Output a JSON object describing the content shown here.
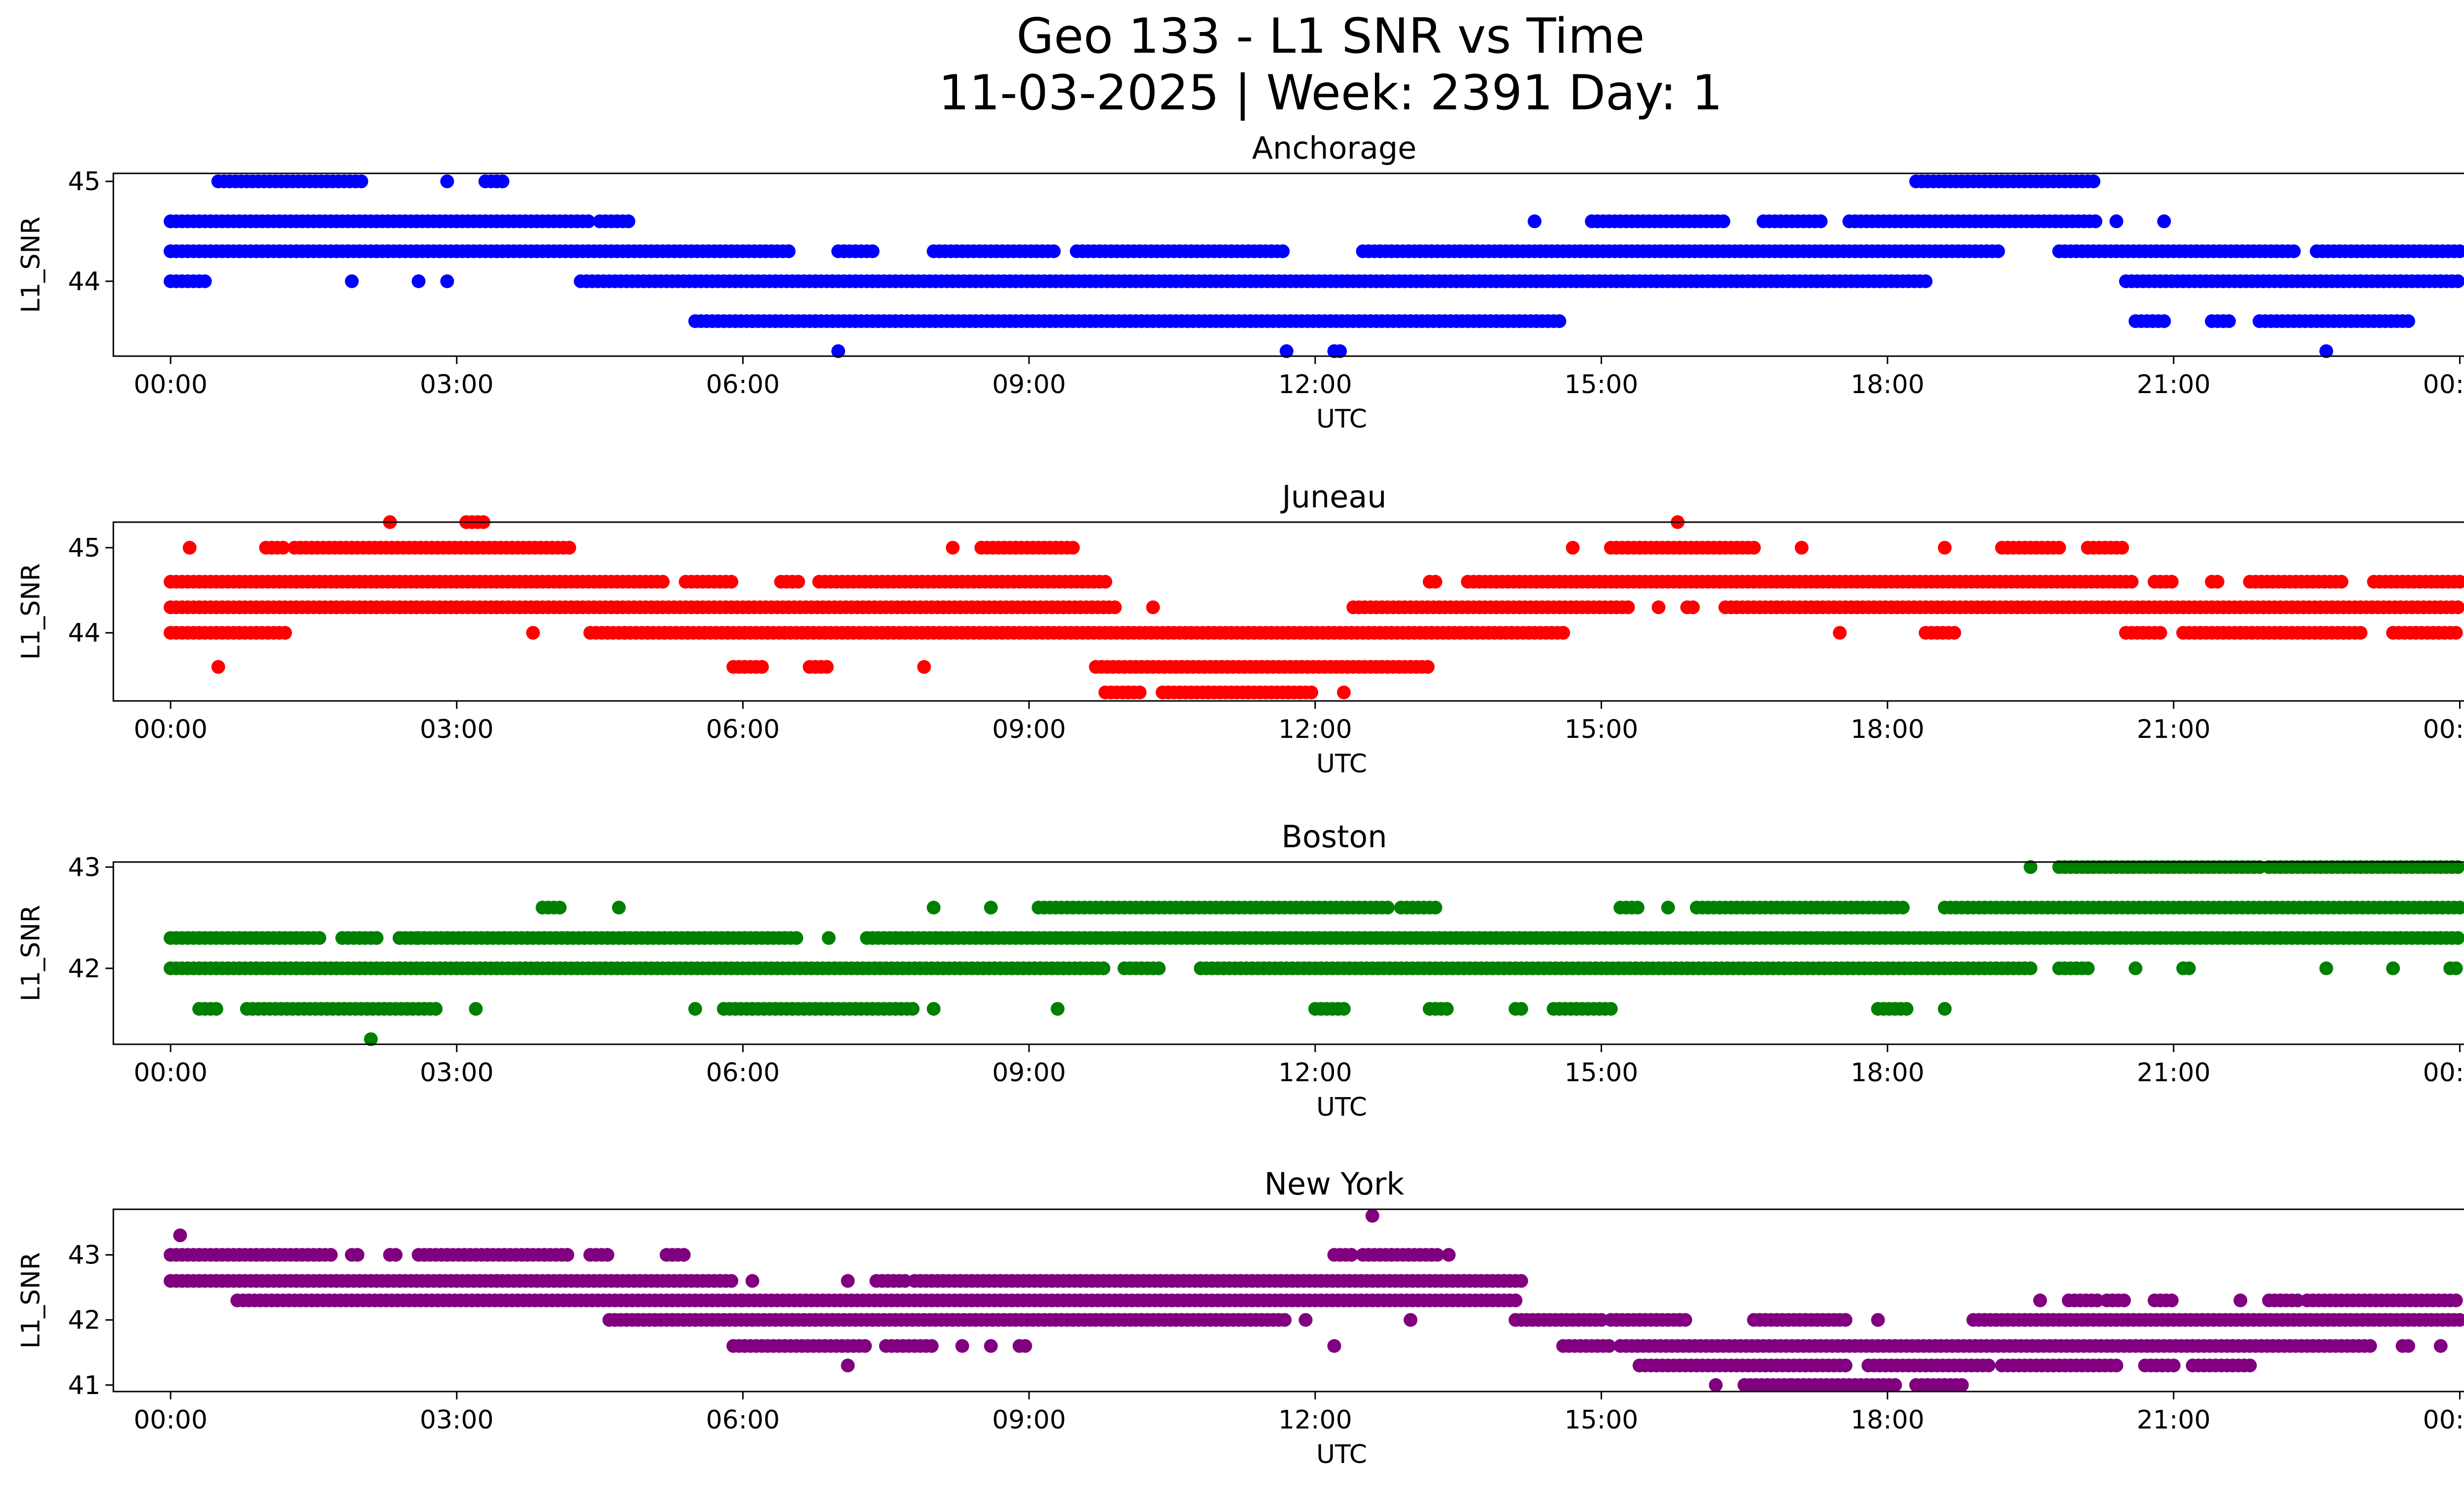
{
  "chart_data": {
    "type": "scatter",
    "suptitle_line1": "Geo 133 - L1 SNR vs Time",
    "suptitle_line2": "11-03-2025 | Week: 2391 Day: 1",
    "xlabel": "UTC",
    "xticks": [
      "00:00",
      "03:00",
      "06:00",
      "09:00",
      "12:00",
      "15:00",
      "18:00",
      "21:00",
      "00:00"
    ],
    "xlim_hours": [
      -0.6,
      25.0
    ],
    "panels": [
      {
        "title": "Anchorage",
        "ylabel": "L1_SNR",
        "color": "#0000ff",
        "ylim": [
          43.25,
          45.08
        ],
        "yticks": [
          44,
          45
        ],
        "bands": [
          {
            "y": 45.0,
            "segments": [
              [
                0.5,
                2.0
              ],
              [
                2.9,
                2.9
              ],
              [
                3.3,
                3.5
              ],
              [
                18.3,
                20.2
              ]
            ]
          },
          {
            "y": 44.6,
            "segments": [
              [
                0.0,
                4.4
              ],
              [
                4.5,
                4.8
              ],
              [
                14.3,
                14.3
              ],
              [
                14.9,
                16.3
              ],
              [
                16.7,
                17.3
              ],
              [
                17.6,
                20.2
              ],
              [
                20.4,
                20.4
              ],
              [
                20.9,
                20.9
              ]
            ]
          },
          {
            "y": 44.3,
            "segments": [
              [
                0.0,
                6.5
              ],
              [
                7.0,
                7.4
              ],
              [
                8.0,
                9.3
              ],
              [
                9.5,
                11.7
              ],
              [
                12.5,
                19.2
              ],
              [
                19.8,
                22.3
              ],
              [
                22.5,
                24.0
              ]
            ]
          },
          {
            "y": 44.0,
            "segments": [
              [
                0.0,
                0.4
              ],
              [
                1.9,
                1.9
              ],
              [
                2.6,
                2.6
              ],
              [
                2.9,
                2.9
              ],
              [
                4.3,
                18.4
              ],
              [
                20.5,
                24.0
              ]
            ]
          },
          {
            "y": 43.6,
            "segments": [
              [
                5.5,
                14.6
              ],
              [
                20.6,
                20.9
              ],
              [
                21.4,
                21.6
              ],
              [
                21.9,
                23.5
              ]
            ]
          },
          {
            "y": 43.3,
            "segments": [
              [
                7.0,
                7.0
              ],
              [
                11.7,
                11.7
              ],
              [
                12.2,
                12.3
              ],
              [
                22.6,
                22.6
              ]
            ]
          }
        ]
      },
      {
        "title": "Juneau",
        "ylabel": "L1_SNR",
        "color": "#ff0000",
        "ylim": [
          43.2,
          45.3
        ],
        "yticks": [
          44,
          45
        ],
        "bands": [
          {
            "y": 45.3,
            "segments": [
              [
                2.3,
                2.3
              ],
              [
                3.1,
                3.3
              ],
              [
                15.8,
                15.8
              ]
            ]
          },
          {
            "y": 45.0,
            "segments": [
              [
                0.2,
                0.2
              ],
              [
                1.0,
                1.2
              ],
              [
                1.3,
                4.2
              ],
              [
                8.2,
                8.2
              ],
              [
                8.5,
                9.5
              ],
              [
                14.7,
                14.7
              ],
              [
                15.1,
                16.6
              ],
              [
                17.1,
                17.1
              ],
              [
                18.6,
                18.6
              ],
              [
                19.2,
                19.8
              ],
              [
                20.1,
                20.5
              ]
            ]
          },
          {
            "y": 44.6,
            "segments": [
              [
                0.0,
                5.2
              ],
              [
                5.4,
                5.9
              ],
              [
                6.4,
                6.6
              ],
              [
                6.8,
                9.8
              ],
              [
                13.2,
                13.3
              ],
              [
                13.6,
                20.6
              ],
              [
                20.8,
                21.0
              ],
              [
                21.4,
                21.5
              ],
              [
                21.8,
                22.8
              ],
              [
                23.1,
                24.0
              ]
            ]
          },
          {
            "y": 44.3,
            "segments": [
              [
                0.0,
                9.9
              ],
              [
                10.3,
                10.3
              ],
              [
                12.4,
                15.3
              ],
              [
                15.6,
                15.6
              ],
              [
                15.9,
                16.0
              ],
              [
                16.3,
                24.0
              ]
            ]
          },
          {
            "y": 44.0,
            "segments": [
              [
                0.0,
                1.2
              ],
              [
                1.2,
                1.2
              ],
              [
                3.8,
                3.8
              ],
              [
                4.4,
                9.5
              ],
              [
                9.5,
                14.6
              ],
              [
                14.6,
                14.6
              ],
              [
                17.5,
                17.5
              ],
              [
                18.4,
                18.7
              ],
              [
                20.5,
                20.9
              ],
              [
                21.1,
                23.0
              ],
              [
                23.3,
                24.0
              ]
            ]
          },
          {
            "y": 43.6,
            "segments": [
              [
                0.5,
                0.5
              ],
              [
                5.9,
                6.2
              ],
              [
                6.7,
                6.9
              ],
              [
                7.9,
                7.9
              ],
              [
                9.7,
                13.2
              ]
            ]
          },
          {
            "y": 43.3,
            "segments": [
              [
                9.8,
                10.2
              ],
              [
                10.4,
                12.0
              ],
              [
                12.3,
                12.3
              ]
            ]
          }
        ]
      },
      {
        "title": "Boston",
        "ylabel": "L1_SNR",
        "color": "#008000",
        "ylim": [
          41.25,
          43.05
        ],
        "yticks": [
          42,
          43
        ],
        "bands": [
          {
            "y": 43.0,
            "segments": [
              [
                19.5,
                19.5
              ],
              [
                19.8,
                21.9
              ],
              [
                22.0,
                24.0
              ]
            ]
          },
          {
            "y": 42.6,
            "segments": [
              [
                3.9,
                4.1
              ],
              [
                4.7,
                4.7
              ],
              [
                8.0,
                8.0
              ],
              [
                8.6,
                8.6
              ],
              [
                9.1,
                12.8
              ],
              [
                12.9,
                13.3
              ],
              [
                15.2,
                15.4
              ],
              [
                15.7,
                15.7
              ],
              [
                16.0,
                18.2
              ],
              [
                18.6,
                24.0
              ]
            ]
          },
          {
            "y": 42.3,
            "segments": [
              [
                0.0,
                1.6
              ],
              [
                1.8,
                2.2
              ],
              [
                2.4,
                2.6
              ],
              [
                2.6,
                6.6
              ],
              [
                6.9,
                6.9
              ],
              [
                7.3,
                24.0
              ]
            ]
          },
          {
            "y": 42.0,
            "segments": [
              [
                0.0,
                9.8
              ],
              [
                10.0,
                10.4
              ],
              [
                10.8,
                19.5
              ],
              [
                19.8,
                20.1
              ],
              [
                20.6,
                20.6
              ],
              [
                21.1,
                21.2
              ],
              [
                22.6,
                22.6
              ],
              [
                23.3,
                23.3
              ],
              [
                23.9,
                24.0
              ]
            ]
          },
          {
            "y": 41.6,
            "segments": [
              [
                0.3,
                0.5
              ],
              [
                0.8,
                2.8
              ],
              [
                3.2,
                3.2
              ],
              [
                5.5,
                5.5
              ],
              [
                5.8,
                7.8
              ],
              [
                8.0,
                8.0
              ],
              [
                9.3,
                9.3
              ],
              [
                12.0,
                12.3
              ],
              [
                13.2,
                13.4
              ],
              [
                14.1,
                14.2
              ],
              [
                14.5,
                15.1
              ],
              [
                17.9,
                18.2
              ],
              [
                18.6,
                18.6
              ]
            ]
          },
          {
            "y": 41.3,
            "segments": [
              [
                2.1,
                2.1
              ]
            ]
          }
        ]
      },
      {
        "title": "New York",
        "ylabel": "L1_SNR",
        "color": "#800080",
        "ylim": [
          40.9,
          43.7
        ],
        "yticks": [
          41,
          42,
          43
        ],
        "bands": [
          {
            "y": 43.6,
            "segments": [
              [
                12.6,
                12.6
              ]
            ]
          },
          {
            "y": 43.3,
            "segments": [
              [
                0.1,
                0.1
              ]
            ]
          },
          {
            "y": 43.0,
            "segments": [
              [
                0.0,
                1.7
              ],
              [
                1.9,
                2.0
              ],
              [
                2.3,
                2.4
              ],
              [
                2.6,
                4.2
              ],
              [
                4.4,
                4.6
              ],
              [
                5.2,
                5.4
              ],
              [
                12.2,
                12.4
              ],
              [
                12.5,
                13.3
              ],
              [
                13.4,
                13.4
              ]
            ]
          },
          {
            "y": 42.6,
            "segments": [
              [
                0.0,
                5.9
              ],
              [
                6.1,
                6.1
              ],
              [
                7.1,
                7.1
              ],
              [
                7.4,
                7.7
              ],
              [
                7.8,
                14.2
              ]
            ]
          },
          {
            "y": 42.3,
            "segments": [
              [
                0.7,
                6.0
              ],
              [
                6.0,
                14.1
              ],
              [
                19.6,
                19.6
              ],
              [
                19.9,
                20.2
              ],
              [
                20.3,
                20.5
              ],
              [
                20.8,
                21.0
              ],
              [
                21.7,
                21.7
              ],
              [
                22.0,
                22.3
              ],
              [
                22.4,
                24.0
              ]
            ]
          },
          {
            "y": 42.0,
            "segments": [
              [
                4.6,
                11.7
              ],
              [
                11.9,
                11.9
              ],
              [
                13.0,
                13.0
              ],
              [
                14.1,
                15.0
              ],
              [
                15.1,
                15.9
              ],
              [
                16.6,
                17.6
              ],
              [
                17.9,
                17.9
              ],
              [
                18.9,
                24.0
              ]
            ]
          },
          {
            "y": 41.6,
            "segments": [
              [
                5.9,
                7.3
              ],
              [
                7.5,
                8.0
              ],
              [
                8.3,
                8.3
              ],
              [
                8.6,
                8.6
              ],
              [
                8.9,
                9.0
              ],
              [
                12.2,
                12.2
              ],
              [
                14.6,
                15.1
              ],
              [
                15.2,
                23.1
              ],
              [
                23.4,
                23.5
              ],
              [
                23.8,
                23.8
              ]
            ]
          },
          {
            "y": 41.3,
            "segments": [
              [
                7.1,
                7.1
              ],
              [
                15.4,
                17.6
              ],
              [
                17.8,
                19.1
              ],
              [
                19.2,
                20.4
              ],
              [
                20.7,
                21.0
              ],
              [
                21.2,
                21.8
              ]
            ]
          },
          {
            "y": 41.0,
            "segments": [
              [
                16.2,
                16.2
              ],
              [
                16.5,
                17.0
              ],
              [
                17.0,
                18.1
              ],
              [
                18.3,
                18.8
              ]
            ]
          }
        ]
      }
    ]
  }
}
